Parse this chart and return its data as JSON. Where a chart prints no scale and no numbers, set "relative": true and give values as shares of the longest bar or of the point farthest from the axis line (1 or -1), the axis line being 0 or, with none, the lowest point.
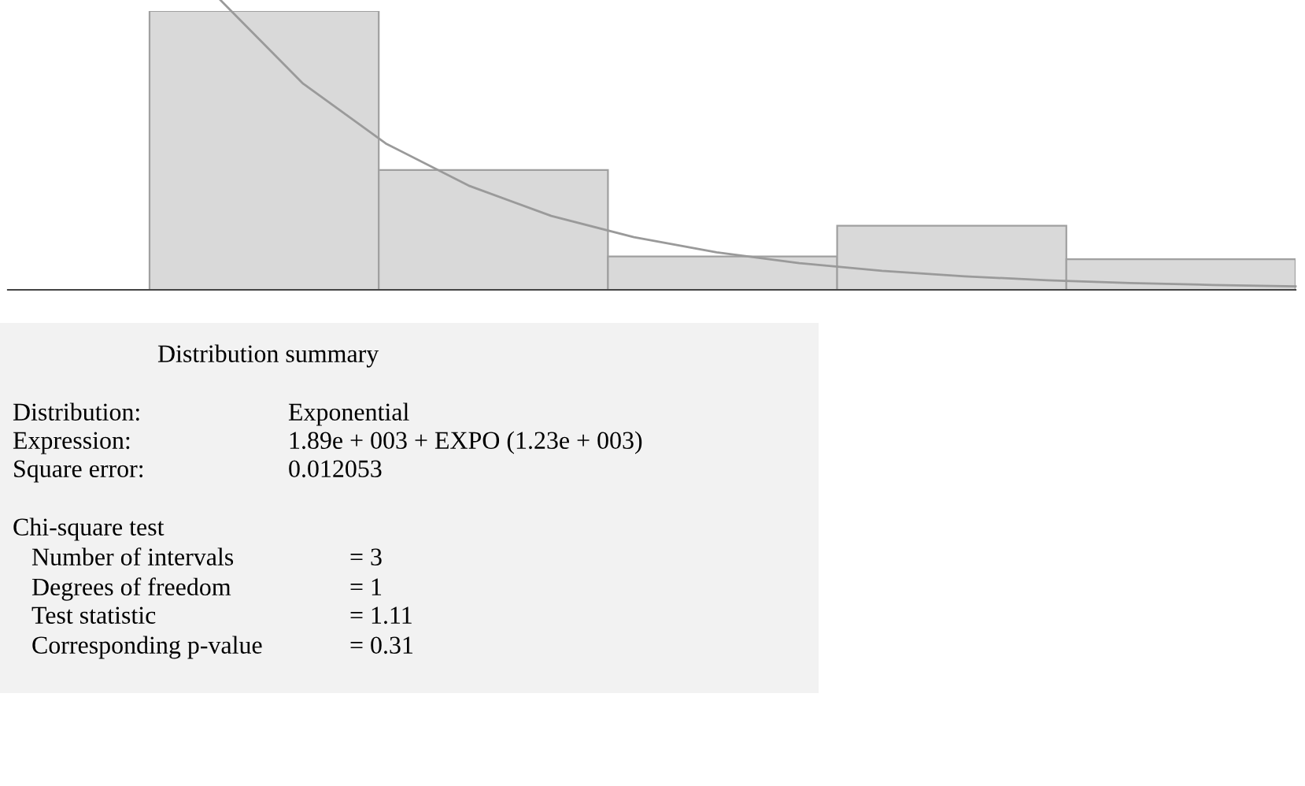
{
  "chart_data": [
    {
      "type": "bar",
      "relative": true,
      "categories": [
        null,
        null,
        null,
        null,
        null
      ],
      "color": "#d9d9d9",
      "values": [
        1,
        0.43,
        0.12,
        0.23,
        0.11
      ]
    },
    {
      "type": "line",
      "relative": true,
      "categories": [
        null,
        null,
        null,
        null,
        null,
        null,
        null,
        null,
        null,
        null,
        null,
        null,
        null,
        null
      ],
      "color": "#9a9a9a",
      "values": [
        1,
        0.708,
        0.499,
        0.352,
        0.246,
        0.172,
        0.119,
        0.081,
        0.054,
        0.035,
        0.0214,
        0.0118,
        0.0049,
        0
      ]
    },
    {
      "type": "other",
      "title": "Distribution summary",
      "annotations": [
        "Distribution:",
        "Exponential",
        "Expression:",
        "1.89e + 003 + EXPO (1.23e + 003)",
        "Square error:",
        "0.012053",
        "Chi-square test",
        "Number of intervals",
        "= 3",
        "Degrees of freedom",
        "= 1",
        "Test statistic",
        "= 1.11",
        "Corresponding p-value",
        "= 0.31"
      ]
    }
  ]
}
